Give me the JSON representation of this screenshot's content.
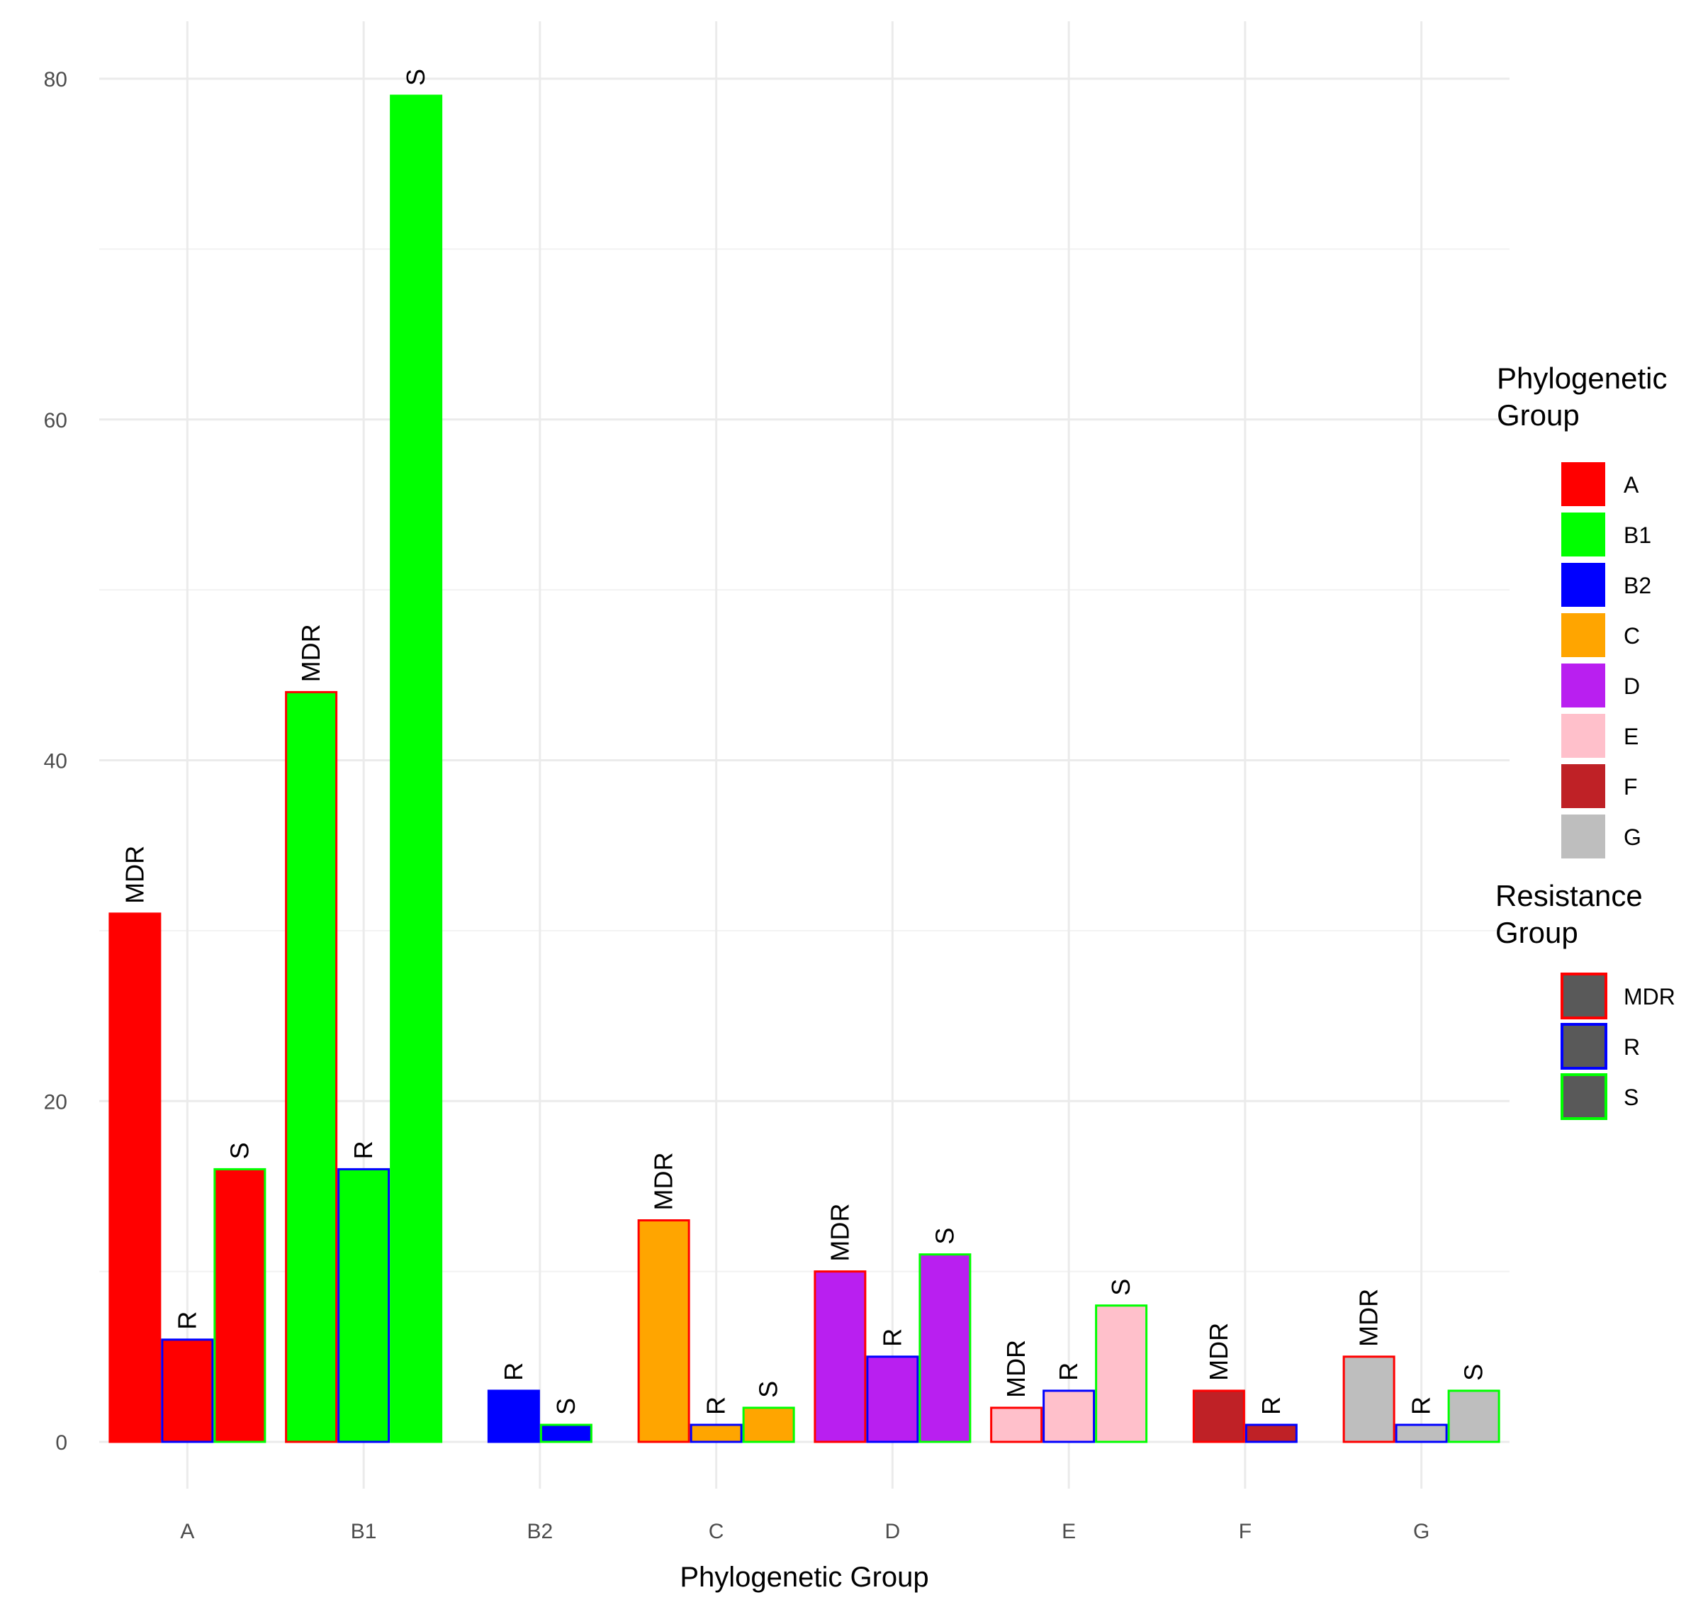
{
  "chart_data": {
    "type": "bar",
    "title": "",
    "xlabel": "Phylogenetic Group",
    "ylabel": "",
    "ylim": [
      -3,
      82
    ],
    "yticks": [
      0,
      20,
      40,
      60,
      80
    ],
    "grid": true,
    "categories": [
      "A",
      "B1",
      "B2",
      "C",
      "D",
      "E",
      "F",
      "G"
    ],
    "groups": [
      {
        "category": "A",
        "bars": [
          {
            "resistance": "MDR",
            "value": 31
          },
          {
            "resistance": "R",
            "value": 6
          },
          {
            "resistance": "S",
            "value": 16
          }
        ]
      },
      {
        "category": "B1",
        "bars": [
          {
            "resistance": "MDR",
            "value": 44
          },
          {
            "resistance": "R",
            "value": 16
          },
          {
            "resistance": "S",
            "value": 79
          }
        ]
      },
      {
        "category": "B2",
        "bars": [
          {
            "resistance": "R",
            "value": 3
          },
          {
            "resistance": "S",
            "value": 1
          }
        ]
      },
      {
        "category": "C",
        "bars": [
          {
            "resistance": "MDR",
            "value": 13
          },
          {
            "resistance": "R",
            "value": 1
          },
          {
            "resistance": "S",
            "value": 2
          }
        ]
      },
      {
        "category": "D",
        "bars": [
          {
            "resistance": "MDR",
            "value": 10
          },
          {
            "resistance": "R",
            "value": 5
          },
          {
            "resistance": "S",
            "value": 11
          }
        ]
      },
      {
        "category": "E",
        "bars": [
          {
            "resistance": "MDR",
            "value": 2
          },
          {
            "resistance": "R",
            "value": 3
          },
          {
            "resistance": "S",
            "value": 8
          }
        ]
      },
      {
        "category": "F",
        "bars": [
          {
            "resistance": "MDR",
            "value": 3
          },
          {
            "resistance": "R",
            "value": 1
          }
        ]
      },
      {
        "category": "G",
        "bars": [
          {
            "resistance": "MDR",
            "value": 5
          },
          {
            "resistance": "R",
            "value": 1
          },
          {
            "resistance": "S",
            "value": 3
          }
        ]
      }
    ],
    "fill_colors": {
      "A": "#ff0000",
      "B1": "#00ff00",
      "B2": "#0000ff",
      "C": "#ffa500",
      "D": "#b91ff0",
      "E": "#ffc0cb",
      "F": "#bf2126",
      "G": "#bebebe"
    },
    "outline_colors": {
      "MDR": "#ff0000",
      "R": "#0000ff",
      "S": "#00ff00"
    },
    "legend": {
      "placement": "right",
      "fill_title_lines": [
        "Phylogenetic",
        "Group"
      ],
      "fill_entries": [
        "A",
        "B1",
        "B2",
        "C",
        "D",
        "E",
        "F",
        "G"
      ],
      "outline_title_lines": [
        "Resistance",
        "Group"
      ],
      "outline_entries": [
        "MDR",
        "R",
        "S"
      ],
      "outline_key_fill": "#595959"
    }
  }
}
